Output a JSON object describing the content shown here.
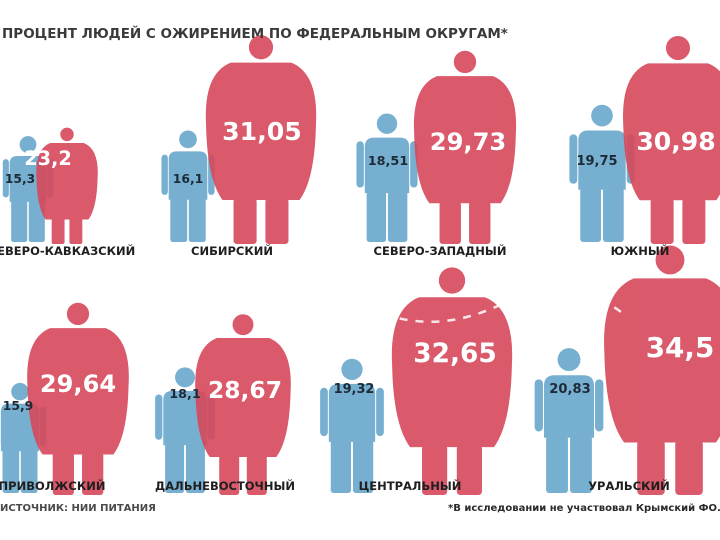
{
  "title": "ПРОЦЕНТ ЛЮДЕЙ С ОЖИРЕНИЕМ ПО ФЕДЕРАЛЬНЫМ ОКРУГАМ*",
  "footnote": "*В исследовании не участвовал Крымский ФО.",
  "source": "ИСТОЧНИК: НИИ ПИТАНИЯ",
  "colors": {
    "men": "#6ba9cc",
    "women": "#d6485a",
    "dashes": "#ffffff"
  },
  "chart_data": {
    "type": "pictogram",
    "categories": [
      "СЕВЕРО-КАВКАЗСКИЙ",
      "СИБИРСКИЙ",
      "СЕВЕРО-ЗАПАДНЫЙ",
      "ЮЖНЫЙ",
      "ПРИВОЛЖСКИЙ",
      "ДАЛЬНЕВОСТОЧНЫЙ",
      "ЦЕНТРАЛЬНЫЙ",
      "УРАЛЬСКИЙ"
    ],
    "series": [
      {
        "values": [
          15.3,
          16.1,
          18.51,
          19.75,
          15.9,
          18.1,
          19.32,
          20.83
        ]
      },
      {
        "values": [
          23.2,
          31.05,
          29.73,
          30.98,
          29.64,
          28.67,
          32.65,
          34.5
        ]
      }
    ],
    "data_labels": {
      "men": [
        "15,3",
        "16,1",
        "18,51",
        "19,75",
        "15,9",
        "18,1",
        "19,32",
        "20,83"
      ],
      "women": [
        "23,2",
        "31,05",
        "29,73",
        "30,98",
        "29,64",
        "28,67",
        "32,65",
        "34,5"
      ]
    }
  }
}
